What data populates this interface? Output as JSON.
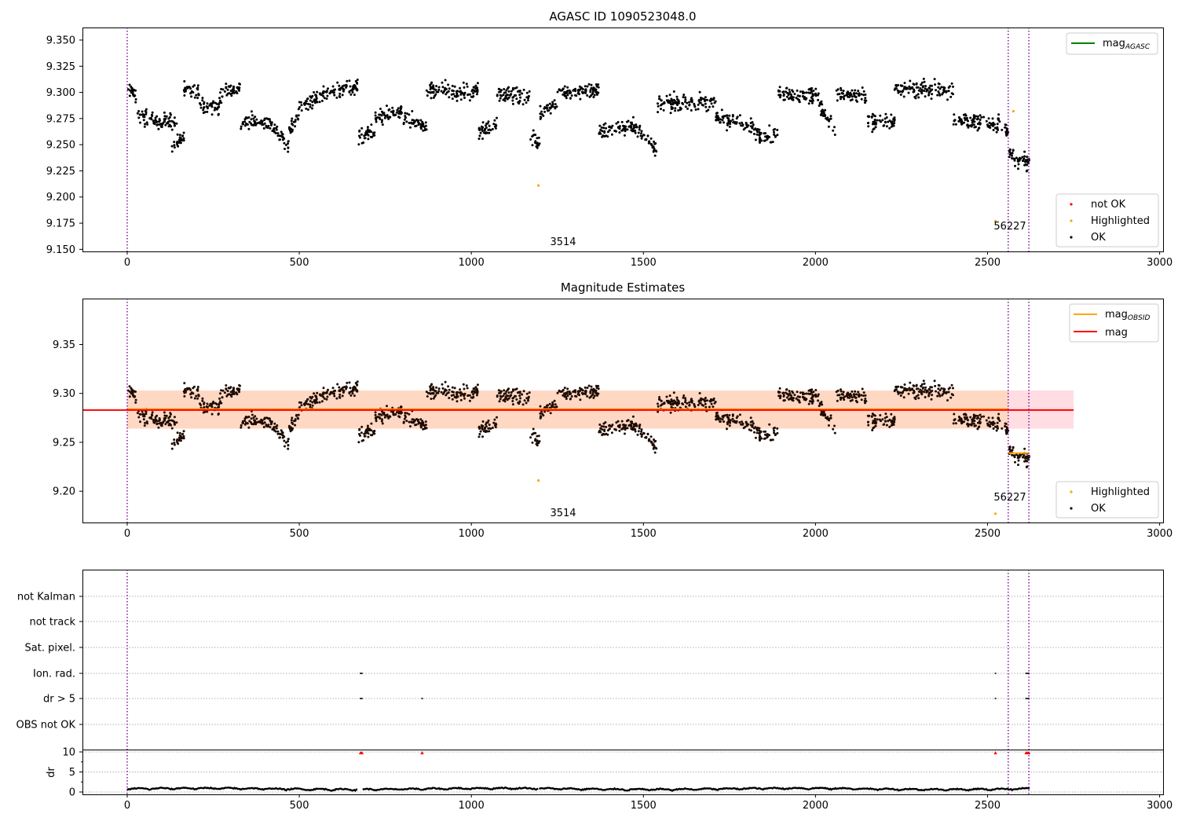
{
  "chart_data": [
    {
      "type": "scatter",
      "title": "AGASC ID 1090523048.0",
      "xlim": [
        -130,
        3010
      ],
      "ylim": [
        9.148,
        9.362
      ],
      "x_ticks": [
        "0",
        "500",
        "1000",
        "1500",
        "2000",
        "2500",
        "3000"
      ],
      "y_ticks": [
        "9.150",
        "9.175",
        "9.200",
        "9.225",
        "9.250",
        "9.275",
        "9.300",
        "9.325",
        "9.350"
      ],
      "vlines": [
        0,
        2560,
        2620
      ],
      "obsid_labels": [
        {
          "text": "3514",
          "x": 1280,
          "y": 9.159
        },
        {
          "text": "56227",
          "x": 2590,
          "y": 9.174
        }
      ],
      "legend_lines": [
        {
          "name": "mag",
          "sub": "AGASC",
          "color": "#008000"
        }
      ],
      "legend_markers": [
        {
          "name": "not OK",
          "color": "#ff0000"
        },
        {
          "name": "Highlighted",
          "color": "#ffa500"
        },
        {
          "name": "OK",
          "color": "#000000"
        }
      ],
      "highlighted_points": [
        [
          1195,
          9.211
        ],
        [
          2523,
          9.177
        ],
        [
          2575,
          9.282
        ]
      ]
    },
    {
      "type": "scatter",
      "title": "Magnitude Estimates",
      "xlim": [
        -130,
        3010
      ],
      "ylim": [
        9.168,
        9.397
      ],
      "x_ticks": [
        "0",
        "500",
        "1000",
        "1500",
        "2000",
        "2500",
        "3000"
      ],
      "y_ticks": [
        "9.20",
        "9.25",
        "9.30",
        "9.35"
      ],
      "vlines": [
        0,
        2560,
        2620
      ],
      "obsid_labels": [
        {
          "text": "3514",
          "x": 1280,
          "y": 9.182
        },
        {
          "text": "56227",
          "x": 2590,
          "y": 9.195
        }
      ],
      "mag_mean": 9.283,
      "mag_band": [
        9.264,
        9.303
      ],
      "mag_band_xrange": [
        0,
        2750
      ],
      "obsid_mag": [
        {
          "x": [
            0,
            2560
          ],
          "y": 9.284
        },
        {
          "x": [
            2560,
            2620
          ],
          "y": 9.239
        }
      ],
      "legend_lines": [
        {
          "name": "mag",
          "sub": "OBSID",
          "color": "#ffa500"
        },
        {
          "name": "mag",
          "sub": "",
          "color": "#ff0000"
        }
      ],
      "legend_markers": [
        {
          "name": "Highlighted",
          "color": "#ffa500"
        },
        {
          "name": "OK",
          "color": "#000000"
        }
      ],
      "highlighted_points": [
        [
          1195,
          9.211
        ],
        [
          2523,
          9.177
        ]
      ]
    },
    {
      "type": "scatter",
      "title": "",
      "xlim": [
        -130,
        3010
      ],
      "x_ticks": [
        "0",
        "500",
        "1000",
        "1500",
        "2000",
        "2500",
        "3000"
      ],
      "flag_labels": [
        "not Kalman",
        "not track",
        "Sat. pixel.",
        "Ion. rad.",
        "dr > 5",
        "OBS not OK"
      ],
      "flag_points": {
        "Ion. rad.": [
          678,
          682,
          2523,
          2612,
          2616,
          2620
        ],
        "dr > 5": [
          678,
          682,
          857,
          2523,
          2612,
          2616,
          2620
        ],
        "not Kalman": [],
        "not track": [],
        "Sat. pixel.": [],
        "OBS not OK": []
      },
      "dr_ylabel": "dr",
      "dr_ticks": [
        "0",
        "5",
        "10"
      ],
      "dr_ylim": [
        0,
        10
      ],
      "dr_clipped_x": [
        678,
        682,
        857,
        2523,
        2612,
        2616,
        2620
      ]
    }
  ]
}
